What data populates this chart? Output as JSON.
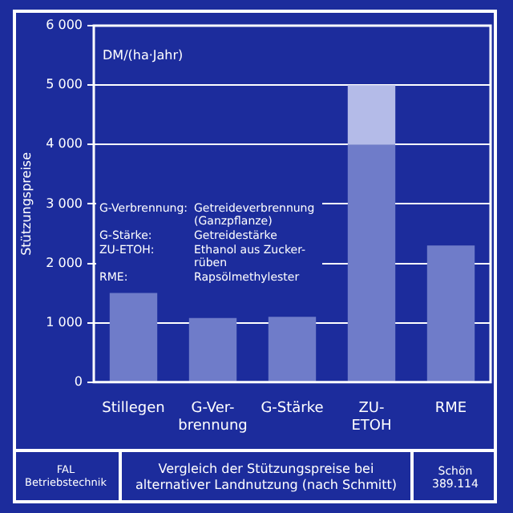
{
  "chart_data": {
    "type": "bar",
    "title": "Vergleich der Stützungspreise bei alternativer Landnutzung (nach Schmitt)",
    "ylabel": "Stützungspreise",
    "categories": [
      "Stillegen",
      "G-Ver-\nbrennung",
      "G-Stärke",
      "ZU-\nETOH",
      "RME"
    ],
    "stacked": true,
    "series": [
      {
        "color": "#6f7cc9",
        "values": [
          1500,
          1080,
          1100,
          4000,
          2300
        ]
      },
      {
        "color": "#b4bbe8",
        "values": [
          null,
          null,
          null,
          1000,
          null
        ]
      }
    ],
    "ylim": [
      0,
      6000
    ],
    "yticks": [
      0,
      {
        "value": 1000,
        "label": "1 000"
      },
      {
        "value": 2000,
        "label": "2 000"
      },
      {
        "value": 3000,
        "label": "3 000"
      },
      {
        "value": 4000,
        "label": "4 000"
      },
      {
        "value": 5000,
        "label": "5 000"
      },
      {
        "value": 6000,
        "label": "6 000"
      }
    ],
    "grid": "y",
    "annotations": [
      "DM/(ha·Jahr)",
      "G-Verbrennung:\tGetreideverbrennung (Ganzpflanze)",
      "G-Stärke:\tGetreidestärke",
      "ZU-ETOH:\tEthanol aus Zucker-rüben",
      "RME:\tRapsölmethylester",
      "FAL\nBetriebstechnik",
      "Schön\n389.114"
    ]
  }
}
